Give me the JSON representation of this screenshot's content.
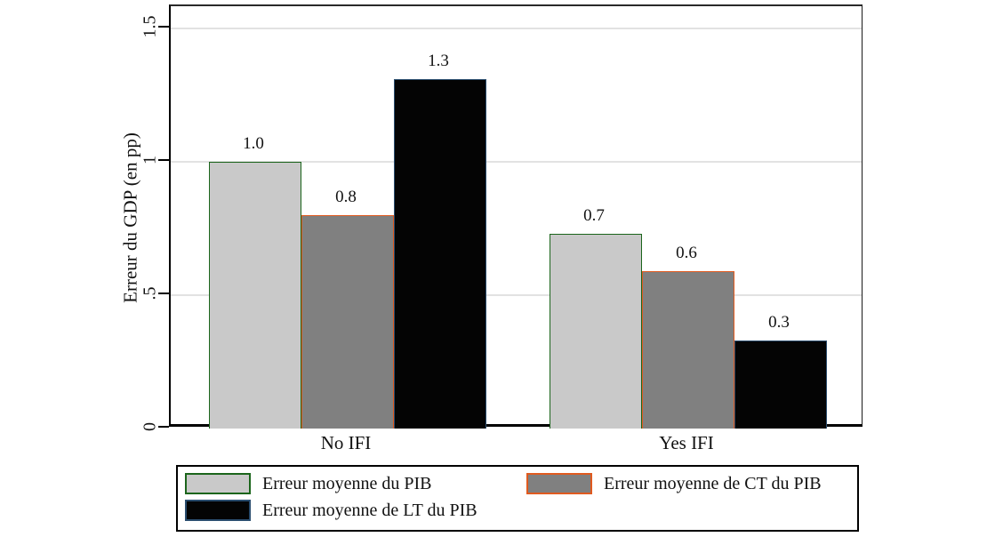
{
  "chart_data": {
    "type": "bar",
    "title": "",
    "ylabel": "Erreur du GDP (en pp)",
    "xlabel": "",
    "categories": [
      "No IFI",
      "Yes IFI"
    ],
    "series": [
      {
        "name": "Erreur moyenne du PIB",
        "values": [
          1.0,
          0.73
        ],
        "display_values": [
          "1.0",
          "0.7"
        ],
        "fill": "#c9c9c9",
        "border": "#1b651b"
      },
      {
        "name": "Erreur moyenne de CT du PIB",
        "values": [
          0.8,
          0.59
        ],
        "display_values": [
          "0.8",
          "0.6"
        ],
        "fill": "#808080",
        "border": "#e05a1f"
      },
      {
        "name": "Erreur moyenne de LT du PIB",
        "values": [
          1.31,
          0.33
        ],
        "display_values": [
          "1.3",
          "0.3"
        ],
        "fill": "#040404",
        "border": "#2a4d6e"
      }
    ],
    "yticks": [
      {
        "value": 0,
        "label": "0"
      },
      {
        "value": 0.5,
        "label": ".5"
      },
      {
        "value": 1,
        "label": "1"
      },
      {
        "value": 1.5,
        "label": "1.5"
      }
    ],
    "ylim": [
      0,
      1.583
    ],
    "grid": true,
    "grid_color": "#e2e2e2",
    "legend_position": "bottom",
    "axis_color": "#000000"
  }
}
